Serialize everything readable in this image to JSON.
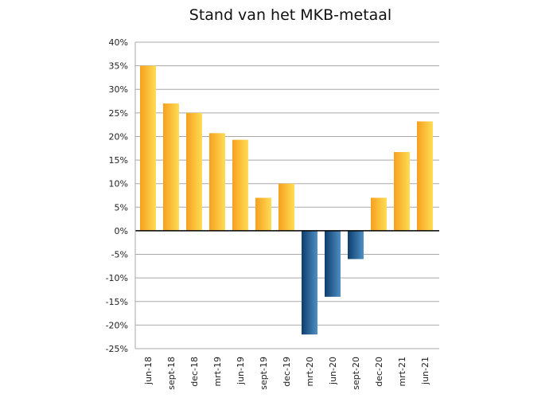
{
  "chart_data": {
    "type": "bar",
    "title": "Stand van het MKB-metaal",
    "xlabel": "",
    "ylabel": "",
    "categories": [
      "jun-18",
      "sept-18",
      "dec-18",
      "mrt-19",
      "jun-19",
      "sept-19",
      "dec-19",
      "mrt-20",
      "jun-20",
      "sept-20",
      "dec-20",
      "mrt-21",
      "jun-21"
    ],
    "values": [
      35,
      27,
      25,
      20.7,
      19.3,
      7,
      10,
      -22,
      -14,
      -6,
      7,
      16.7,
      23.2
    ],
    "ylim": [
      -25,
      40
    ],
    "yticks": [
      "40%",
      "35%",
      "30%",
      "25%",
      "20%",
      "15%",
      "10%",
      "5%",
      "0%",
      "-5%",
      "-10%",
      "-15%",
      "-20%",
      "-25%"
    ],
    "grid": true,
    "colors": {
      "positive_light": "#ffdd55",
      "positive_dark": "#f7a01e",
      "negative_light": "#4f8fc4",
      "negative_dark": "#0d3d6d",
      "grid": "#a8a8a8",
      "axis": "#000000"
    }
  }
}
